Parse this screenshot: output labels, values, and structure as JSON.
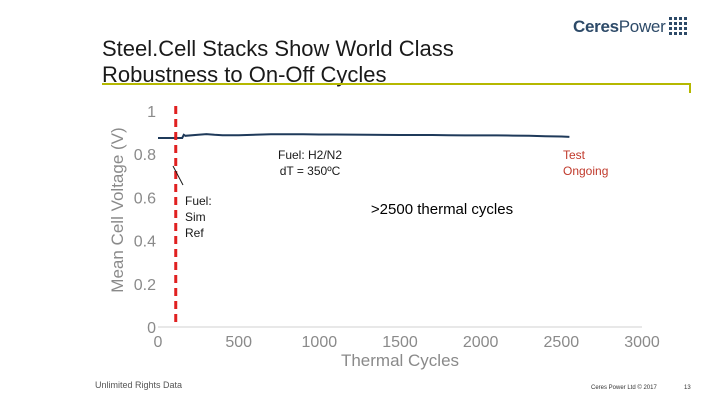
{
  "slide": {
    "title_line1": "Steel.Cell Stacks Show World Class",
    "title_line2": "Robustness to On-Off Cycles",
    "logo_word1": "Ceres",
    "logo_word2": "Power",
    "footer_left": "Unlimited Rights Data",
    "footer_right": "Ceres Power Ltd © 2017",
    "page_number": "13",
    "colors": {
      "title_rule": "#b5b800",
      "logo": "#2d4a68",
      "series": "#1f3a5a",
      "marker_line": "#e02020"
    }
  },
  "chart_data": {
    "type": "line",
    "xlabel": "Thermal Cycles",
    "ylabel": "Mean Cell Voltage (V)",
    "xlim": [
      0,
      3000
    ],
    "ylim": [
      0,
      1
    ],
    "x_ticks": [
      0,
      500,
      1000,
      1500,
      2000,
      2500,
      3000
    ],
    "x_tick_labels": [
      "0",
      "500",
      "1000",
      "1500",
      "2000",
      "2500",
      "3000"
    ],
    "y_ticks": [
      0,
      0.2,
      0.4,
      0.6,
      0.8,
      1
    ],
    "y_tick_labels": [
      "0",
      "0.2",
      "0.4",
      "0.6",
      "0.8",
      "1"
    ],
    "grid": false,
    "series": [
      {
        "x": [
          0,
          100,
          150,
          160,
          170,
          250,
          300,
          350,
          400,
          500,
          700,
          900,
          1000,
          1100,
          1300,
          1500,
          1700,
          1800,
          1900,
          2000,
          2100,
          2200,
          2300,
          2400,
          2500,
          2550
        ],
        "y": [
          0.875,
          0.875,
          0.875,
          0.89,
          0.885,
          0.89,
          0.893,
          0.89,
          0.888,
          0.888,
          0.892,
          0.892,
          0.891,
          0.891,
          0.89,
          0.889,
          0.889,
          0.888,
          0.887,
          0.887,
          0.887,
          0.886,
          0.885,
          0.883,
          0.882,
          0.88
        ]
      }
    ],
    "vline": {
      "x": 110,
      "style": "dashed",
      "color": "#e02020"
    },
    "annotations": {
      "fuel_sim": [
        "Fuel:",
        "Sim",
        "Ref"
      ],
      "fuel_h2": "Fuel: H2/N2",
      "dt": "dT = 350ºC",
      "test_ongoing": [
        "Test",
        "Ongoing"
      ],
      "thermal_cycles": ">2500 thermal cycles"
    }
  }
}
